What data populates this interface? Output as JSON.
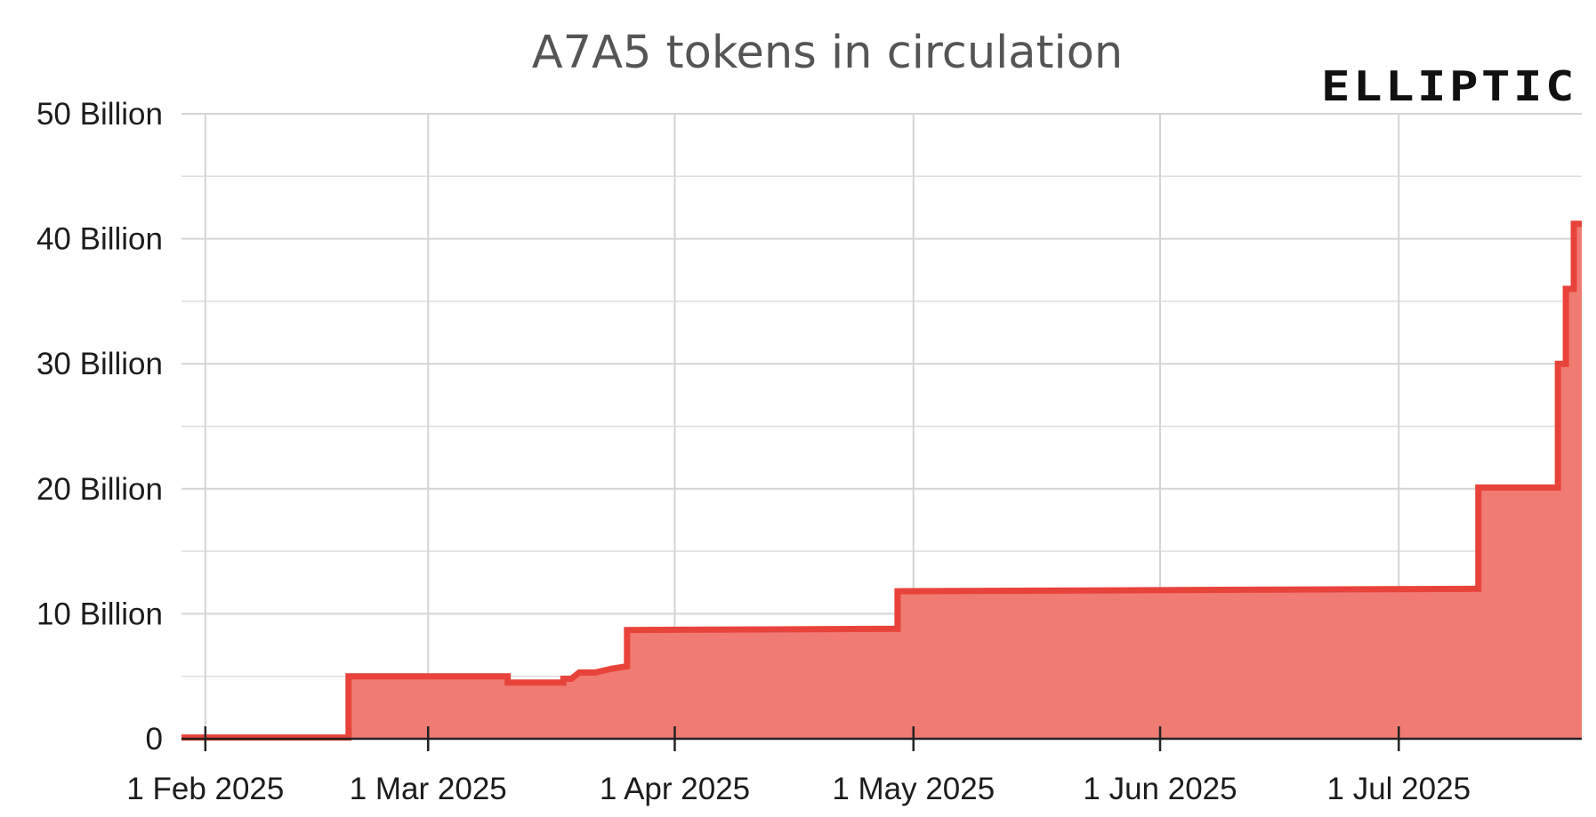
{
  "brand": {
    "name": "ELLIPTIC"
  },
  "colors": {
    "line": "#e8433b",
    "fill": "#f07b72",
    "grid": "#d4d4d4",
    "axis": "#222222"
  },
  "chart_data": {
    "type": "area",
    "title": "A7A5 tokens in circulation",
    "xlabel": "",
    "ylabel": "",
    "x_ticks": [
      {
        "date": "2025-02-01",
        "label": "1 Feb 2025"
      },
      {
        "date": "2025-03-01",
        "label": "1 Mar 2025"
      },
      {
        "date": "2025-04-01",
        "label": "1 Apr 2025"
      },
      {
        "date": "2025-05-01",
        "label": "1 May 2025"
      },
      {
        "date": "2025-06-01",
        "label": "1 Jun 2025"
      },
      {
        "date": "2025-07-01",
        "label": "1 Jul 2025"
      }
    ],
    "y_ticks": [
      {
        "value": 0,
        "label": "0"
      },
      {
        "value": 10,
        "label": "10 Billion"
      },
      {
        "value": 20,
        "label": "20 Billion"
      },
      {
        "value": 30,
        "label": "30 Billion"
      },
      {
        "value": 40,
        "label": "40 Billion"
      },
      {
        "value": 50,
        "label": "50 Billion"
      }
    ],
    "y_unit": "Billion",
    "xlim": [
      "2025-01-29",
      "2025-07-24"
    ],
    "ylim": [
      0,
      50
    ],
    "grid": true,
    "step": true,
    "series": [
      {
        "points": [
          [
            "2025-01-29",
            0.1
          ],
          [
            "2025-02-19",
            0.1
          ],
          [
            "2025-02-19",
            5.0
          ],
          [
            "2025-03-11",
            5.0
          ],
          [
            "2025-03-11",
            4.5
          ],
          [
            "2025-03-18",
            4.5
          ],
          [
            "2025-03-18",
            4.8
          ],
          [
            "2025-03-19",
            4.8
          ],
          [
            "2025-03-20",
            5.3
          ],
          [
            "2025-03-22",
            5.3
          ],
          [
            "2025-03-24",
            5.6
          ],
          [
            "2025-03-26",
            5.8
          ],
          [
            "2025-03-26",
            8.7
          ],
          [
            "2025-04-29",
            8.8
          ],
          [
            "2025-04-29",
            11.8
          ],
          [
            "2025-07-11",
            12.0
          ],
          [
            "2025-07-11",
            20.1
          ],
          [
            "2025-07-21",
            20.1
          ],
          [
            "2025-07-21",
            30.0
          ],
          [
            "2025-07-22",
            30.0
          ],
          [
            "2025-07-22",
            36.0
          ],
          [
            "2025-07-23",
            36.0
          ],
          [
            "2025-07-23",
            41.2
          ],
          [
            "2025-07-24",
            41.2
          ]
        ]
      }
    ]
  }
}
